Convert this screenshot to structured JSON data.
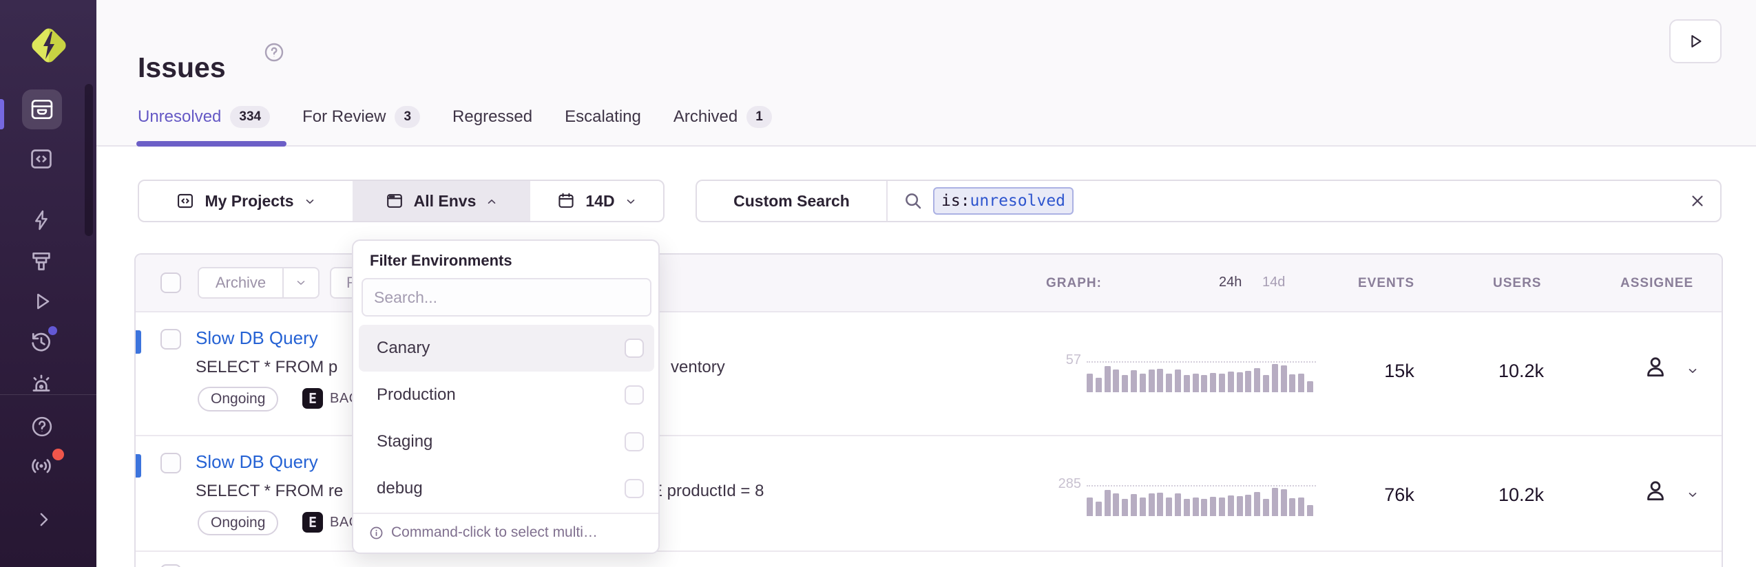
{
  "colors": {
    "accent_purple": "#6C5FC7",
    "active_tab_text": "#6559C5",
    "link_blue": "#2562D4",
    "unread_indicator_blue": "#3C74DD",
    "logo_lime": "#D9E14C",
    "notification_red": "#F0564B",
    "notification_blue": "#6358D4",
    "token_value_blue": "#2E55CE",
    "env_active_segment_bg": "#EAE7EE"
  },
  "sidebar": {
    "icons": [
      "sentry-logo",
      "issues",
      "projects",
      "performance",
      "releases",
      "replays",
      "history",
      "alerts",
      "help",
      "broadcast",
      "collapse"
    ]
  },
  "header": {
    "title": "Issues",
    "tabs": [
      {
        "label": "Unresolved",
        "count": "334",
        "active": true
      },
      {
        "label": "For Review",
        "count": "3",
        "active": false
      },
      {
        "label": "Regressed",
        "active": false
      },
      {
        "label": "Escalating",
        "active": false
      },
      {
        "label": "Archived",
        "count": "1",
        "active": false
      }
    ]
  },
  "toolbar": {
    "projects": "My Projects",
    "environments": "All Envs",
    "date_range": "14D"
  },
  "search": {
    "custom_search": "Custom Search",
    "token_key": "is:",
    "token_value": "unresolved"
  },
  "env_dropdown": {
    "title": "Filter Environments",
    "search_placeholder": "Search...",
    "items": [
      {
        "label": "Canary",
        "highlighted": true,
        "checked": false
      },
      {
        "label": "Production",
        "highlighted": false,
        "checked": false
      },
      {
        "label": "Staging",
        "highlighted": false,
        "checked": false
      },
      {
        "label": "debug",
        "highlighted": false,
        "checked": false
      }
    ],
    "footer_hint": "Command-click to select multi…"
  },
  "table": {
    "actions": {
      "archive": "Archive",
      "resolve_partial": "Re"
    },
    "columns": {
      "graph": "GRAPH:",
      "range_24h": "24h",
      "range_14d": "14d",
      "events": "EVENTS",
      "users": "USERS",
      "assignee": "ASSIGNEE"
    },
    "rows": [
      {
        "title": "Slow DB Query",
        "snippet_left": "SELECT * FROM p",
        "snippet_right": "ventory",
        "status": "Ongoing",
        "project_avatar": "E",
        "project": "BAC",
        "graph_peak": "57",
        "events": "15k",
        "users": "10.2k"
      },
      {
        "title": "Slow DB Query",
        "snippet_left": "SELECT * FROM re",
        "snippet_right": "E productId = 8",
        "status": "Ongoing",
        "project_avatar": "E",
        "project": "BAC",
        "graph_peak": "285",
        "events": "76k",
        "users": "10.2k"
      }
    ]
  },
  "sparkline": {
    "type": "bar",
    "values": [
      0.67,
      0.52,
      0.93,
      0.8,
      0.6,
      0.78,
      0.65,
      0.8,
      0.83,
      0.67,
      0.8,
      0.62,
      0.66,
      0.62,
      0.69,
      0.67,
      0.73,
      0.71,
      0.75,
      0.86,
      0.62,
      1.0,
      0.94,
      0.64,
      0.66,
      0.38
    ]
  }
}
